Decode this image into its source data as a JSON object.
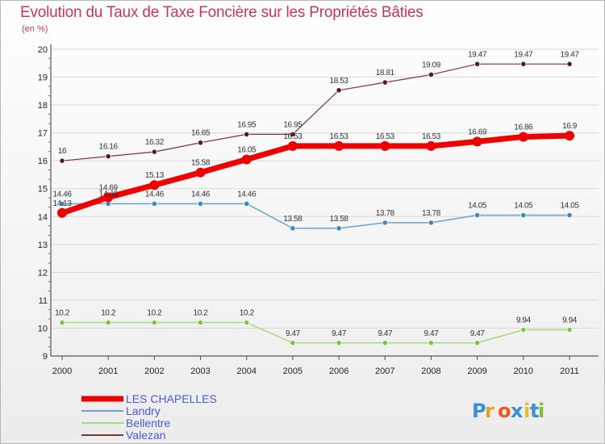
{
  "title": "Evolution du Taux de Taxe Foncière sur les Propriétés Bâties",
  "subtitle": "(en %)",
  "logo": {
    "text": "Proxiti"
  },
  "colors": {
    "title": "#c8355a",
    "legend_text": "#4a5bd8",
    "grid": "#d8d8d8"
  },
  "chart_data": {
    "type": "line",
    "title": "Evolution du Taux de Taxe Foncière sur les Propriétés Bâties",
    "ylabel": "(en %)",
    "xlabel": "",
    "x": [
      "2000",
      "2001",
      "2002",
      "2003",
      "2004",
      "2005",
      "2006",
      "2007",
      "2008",
      "2009",
      "2010",
      "2011"
    ],
    "ylim": [
      9,
      20
    ],
    "yticks": [
      "9",
      "10",
      "11",
      "12",
      "13",
      "14",
      "15",
      "16",
      "17",
      "18",
      "19",
      "20"
    ],
    "grid": true,
    "legend_position": "bottom-left",
    "series": [
      {
        "name": "LES CHAPELLES",
        "color": "#ee0000",
        "marker": "#ee0000",
        "width": 7,
        "r": 6,
        "values": [
          14.13,
          14.69,
          15.13,
          15.58,
          16.05,
          16.53,
          16.53,
          16.53,
          16.53,
          16.69,
          16.86,
          16.9
        ],
        "labels": [
          "14.13",
          "14.69",
          "15.13",
          "15.58",
          "16.05",
          "16.53",
          "16.53",
          "16.53",
          "16.53",
          "16.69",
          "16.86",
          "16.9"
        ]
      },
      {
        "name": "Landry",
        "color": "#6ea2cc",
        "marker": "#3c86c4",
        "width": 1.5,
        "r": 3.2,
        "values": [
          14.46,
          14.46,
          14.46,
          14.46,
          14.46,
          13.58,
          13.58,
          13.78,
          13.78,
          14.05,
          14.05,
          14.05
        ],
        "labels": [
          "14.46",
          "14.46",
          "14.46",
          "14.46",
          "14.46",
          "13.58",
          "13.58",
          "13.78",
          "13.78",
          "14.05",
          "14.05",
          "14.05"
        ]
      },
      {
        "name": "Bellentre",
        "color": "#a6dc7c",
        "marker": "#7cc83c",
        "width": 1.5,
        "r": 3.2,
        "values": [
          10.2,
          10.2,
          10.2,
          10.2,
          10.2,
          9.47,
          9.47,
          9.47,
          9.47,
          9.47,
          9.94,
          9.94
        ],
        "labels": [
          "10.2",
          "10.2",
          "10.2",
          "10.2",
          "10.2",
          "9.47",
          "9.47",
          "9.47",
          "9.47",
          "9.47",
          "9.94",
          "9.94"
        ]
      },
      {
        "name": "Valezan",
        "color": "#7a3438",
        "marker": "#5a1a1e",
        "width": 1.2,
        "r": 3.2,
        "values": [
          16,
          16.16,
          16.32,
          16.65,
          16.95,
          16.95,
          18.53,
          18.81,
          19.09,
          19.47,
          19.47,
          19.47
        ],
        "labels": [
          "16",
          "16.16",
          "16.32",
          "16.65",
          "16.95",
          "16.95",
          "18.53",
          "18.81",
          "19.09",
          "19.47",
          "19.47",
          "19.47"
        ]
      }
    ]
  }
}
